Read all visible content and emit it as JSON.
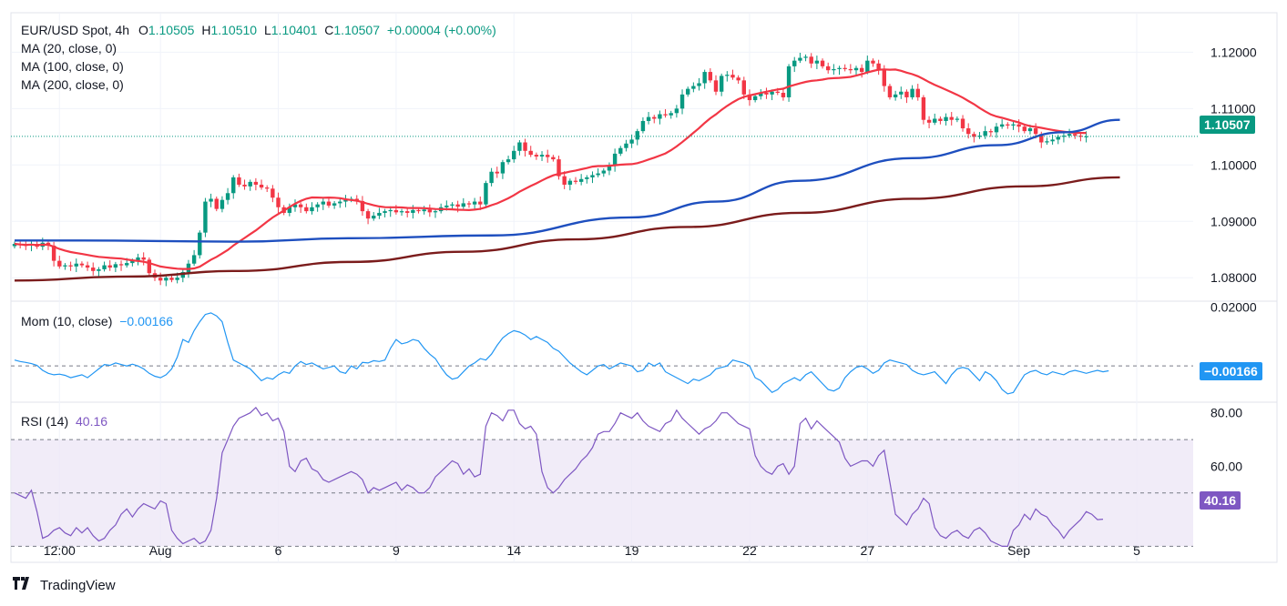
{
  "header": {
    "symbol": "EUR/USD Spot, 4h",
    "open_label": "O",
    "open": "1.10505",
    "high_label": "H",
    "high": "1.10510",
    "low_label": "L",
    "low": "1.10401",
    "close_label": "C",
    "close": "1.10507",
    "change": "+0.00004 (+0.00%)",
    "ma_lines": [
      "MA (20, close, 0)",
      "MA (100, close, 0)",
      "MA (200, close, 0)"
    ]
  },
  "momentum": {
    "label": "Mom (10, close)",
    "value": "−0.00166",
    "badge": "−0.00166"
  },
  "rsi": {
    "label": "RSI (14)",
    "value": "40.16",
    "badge": "40.16"
  },
  "price_badge": "1.10507",
  "brand": {
    "name": "TradingView"
  },
  "colors": {
    "up": "#089981",
    "down": "#f23645",
    "ma20": "#f23645",
    "ma100": "#1e4fbf",
    "ma200": "#7b1c1c",
    "mom": "#2196f3",
    "rsi": "#7e57c2",
    "rsi_band": "#ede7f6"
  },
  "chart_data": [
    {
      "type": "candlestick",
      "title": "EUR/USD Spot, 4h",
      "x_ticks": [
        {
          "label": "12:00",
          "index": 8
        },
        {
          "label": "Aug",
          "index": 26
        },
        {
          "label": "6",
          "index": 47
        },
        {
          "label": "9",
          "index": 68
        },
        {
          "label": "14",
          "index": 89
        },
        {
          "label": "19",
          "index": 110
        },
        {
          "label": "22",
          "index": 131
        },
        {
          "label": "27",
          "index": 152
        },
        {
          "label": "Sep",
          "index": 179
        },
        {
          "label": "5",
          "index": 200
        }
      ],
      "y_ticks": [
        "1.08000",
        "1.09000",
        "1.10000",
        "1.11000",
        "1.12000"
      ],
      "ylim": [
        1.076,
        1.127
      ],
      "last_price": 1.10507,
      "close": [
        1.086,
        1.0858,
        1.0857,
        1.086,
        1.0855,
        1.0862,
        1.0857,
        1.083,
        1.082,
        1.0822,
        1.082,
        1.0825,
        1.0822,
        1.0818,
        1.0812,
        1.0815,
        1.0822,
        1.0818,
        1.0824,
        1.0822,
        1.0826,
        1.083,
        1.0836,
        1.0832,
        1.0808,
        1.08,
        1.0795,
        1.08,
        1.0796,
        1.08,
        1.081,
        1.0825,
        1.084,
        1.088,
        1.0935,
        1.094,
        1.0922,
        1.0938,
        1.095,
        1.0978,
        1.0965,
        1.0962,
        1.097,
        1.0965,
        1.096,
        1.0958,
        1.0942,
        1.0925,
        1.0915,
        1.0925,
        1.093,
        1.0925,
        1.0918,
        1.0925,
        1.093,
        1.0935,
        1.0928,
        1.0932,
        1.0935,
        1.0938,
        1.094,
        1.0936,
        1.0918,
        1.0905,
        1.091,
        1.0915,
        1.0918,
        1.092,
        1.0916,
        1.0918,
        1.0915,
        1.092,
        1.0918,
        1.0921,
        1.0916,
        1.0918,
        1.0925,
        1.0928,
        1.093,
        1.0926,
        1.0932,
        1.093,
        1.0935,
        1.093,
        1.0968,
        1.0988,
        1.0985,
        1.1005,
        1.101,
        1.1025,
        1.104,
        1.1025,
        1.1018,
        1.1015,
        1.1018,
        1.1014,
        1.101,
        1.098,
        1.0965,
        1.0972,
        1.097,
        1.0975,
        1.0978,
        1.0982,
        1.0985,
        1.099,
        1.0998,
        1.102,
        1.103,
        1.1038,
        1.1045,
        1.106,
        1.1078,
        1.1085,
        1.1082,
        1.109,
        1.1088,
        1.1092,
        1.11,
        1.1125,
        1.1135,
        1.114,
        1.1145,
        1.1165,
        1.115,
        1.113,
        1.1158,
        1.116,
        1.1155,
        1.115,
        1.1125,
        1.1115,
        1.1122,
        1.1128,
        1.1125,
        1.113,
        1.1128,
        1.112,
        1.1175,
        1.1185,
        1.119,
        1.1192,
        1.118,
        1.1185,
        1.1175,
        1.1168,
        1.117,
        1.1172,
        1.117,
        1.1168,
        1.1172,
        1.1165,
        1.1185,
        1.118,
        1.1168,
        1.114,
        1.112,
        1.1125,
        1.113,
        1.112,
        1.1135,
        1.112,
        1.108,
        1.1075,
        1.1082,
        1.1078,
        1.1085,
        1.108,
        1.1082,
        1.1065,
        1.1055,
        1.105,
        1.1052,
        1.106,
        1.1058,
        1.1068,
        1.1072,
        1.107,
        1.1072,
        1.1068,
        1.106,
        1.1065,
        1.1055,
        1.104,
        1.1042,
        1.1045,
        1.105,
        1.1052,
        1.1055,
        1.1052,
        1.105,
        1.10507
      ],
      "series": [
        {
          "name": "MA (20, close, 0)",
          "ma_period": 20
        },
        {
          "name": "MA (100, close, 0)",
          "points": [
            [
              0,
              1.0866
            ],
            [
              12,
              1.0866
            ],
            [
              40,
              1.0864
            ],
            [
              60,
              1.087
            ],
            [
              85,
              1.0875
            ],
            [
              110,
              1.0907
            ],
            [
              125,
              1.0935
            ],
            [
              140,
              1.0972
            ],
            [
              160,
              1.1012
            ],
            [
              175,
              1.1035
            ],
            [
              187,
              1.1058
            ],
            [
              197,
              1.108
            ]
          ]
        },
        {
          "name": "MA (200, close, 0)",
          "points": [
            [
              0,
              1.0795
            ],
            [
              20,
              1.0802
            ],
            [
              40,
              1.0812
            ],
            [
              60,
              1.0828
            ],
            [
              80,
              1.0846
            ],
            [
              100,
              1.0868
            ],
            [
              120,
              1.089
            ],
            [
              140,
              1.0915
            ],
            [
              160,
              1.094
            ],
            [
              180,
              1.0962
            ],
            [
              197,
              1.0978
            ]
          ]
        }
      ]
    },
    {
      "type": "line",
      "title": "Mom (10, close)",
      "y_ticks": [
        "0.02000"
      ],
      "ylim": [
        -0.012,
        0.022
      ],
      "zero_line": 0.0,
      "last_value": -0.00166,
      "values": [
        0.002,
        0.0015,
        0.0012,
        0.0008,
        0.0002,
        -0.0015,
        -0.0025,
        -0.003,
        -0.0028,
        -0.0032,
        -0.004,
        -0.0035,
        -0.003,
        -0.004,
        -0.0025,
        -0.001,
        0.0005,
        0.0002,
        0.001,
        0.0005,
        0.0,
        0.0006,
        0.0,
        -0.001,
        -0.0025,
        -0.0035,
        -0.004,
        -0.003,
        -0.001,
        0.003,
        0.009,
        0.008,
        0.012,
        0.015,
        0.0175,
        0.018,
        0.017,
        0.015,
        0.008,
        0.002,
        0.001,
        0.0,
        -0.001,
        -0.003,
        -0.005,
        -0.004,
        -0.0045,
        -0.003,
        -0.002,
        -0.0025,
        0.0,
        0.0015,
        0.0005,
        0.001,
        0.0,
        -0.001,
        -0.0005,
        0.0,
        -0.002,
        -0.0025,
        0.0,
        -0.001,
        0.0012,
        0.001,
        0.0018,
        0.0015,
        0.002,
        0.006,
        0.009,
        0.0075,
        0.008,
        0.009,
        0.0085,
        0.006,
        0.004,
        0.0025,
        -0.0005,
        -0.003,
        -0.0045,
        -0.004,
        -0.002,
        0.0,
        0.001,
        0.0025,
        0.002,
        0.004,
        0.007,
        0.0095,
        0.011,
        0.012,
        0.0115,
        0.0105,
        0.009,
        0.01,
        0.009,
        0.008,
        0.006,
        0.005,
        0.003,
        0.001,
        -0.0005,
        -0.002,
        -0.003,
        -0.0015,
        0.0,
        0.0005,
        -0.001,
        0.0,
        0.001,
        0.0005,
        0.0,
        -0.002,
        -0.0015,
        0.001,
        0.0,
        0.001,
        -0.002,
        -0.003,
        -0.004,
        -0.005,
        -0.006,
        -0.0045,
        -0.005,
        -0.004,
        -0.003,
        -0.001,
        -0.0005,
        0.0,
        0.002,
        0.0015,
        0.001,
        0.0,
        -0.004,
        -0.005,
        -0.007,
        -0.009,
        -0.008,
        -0.006,
        -0.005,
        -0.004,
        -0.005,
        -0.003,
        -0.002,
        -0.004,
        -0.006,
        -0.008,
        -0.0085,
        -0.0075,
        -0.004,
        -0.002,
        -0.0005,
        0.0,
        -0.001,
        -0.0025,
        -0.0015,
        0.001,
        0.002,
        0.0015,
        0.001,
        0.0005,
        -0.0015,
        -0.0025,
        -0.003,
        -0.0025,
        -0.002,
        -0.004,
        -0.006,
        -0.003,
        -0.001,
        -0.0005,
        -0.001,
        -0.003,
        -0.005,
        -0.002,
        -0.003,
        -0.005,
        -0.008,
        -0.0095,
        -0.009,
        -0.006,
        -0.003,
        -0.002,
        -0.0015,
        -0.0025,
        -0.003,
        -0.002,
        -0.0025,
        -0.003,
        -0.002,
        -0.0015,
        -0.002,
        -0.0025,
        -0.002,
        -0.0015,
        -0.002,
        -0.00166
      ],
      "series": [
        {
          "name": "Mom (10, close)"
        }
      ]
    },
    {
      "type": "line",
      "title": "RSI (14)",
      "y_ticks": [
        "60.00",
        "80.00"
      ],
      "ylim": [
        24,
        84
      ],
      "band": [
        30,
        70
      ],
      "midline": 50,
      "last_value": 40.16,
      "values": [
        50,
        49,
        48,
        51,
        43,
        33,
        34,
        36,
        37,
        35,
        34,
        37,
        35,
        37,
        34,
        32,
        33,
        36,
        38,
        42,
        44,
        41,
        44,
        46,
        45,
        44,
        47,
        46,
        36,
        33,
        31,
        32,
        33,
        31,
        32,
        36,
        48,
        65,
        70,
        75,
        78,
        79,
        80,
        82,
        79,
        80,
        77,
        78,
        73,
        60,
        58,
        62,
        63,
        59,
        58,
        55,
        54,
        55,
        56,
        57,
        58,
        57,
        55,
        50,
        52,
        51,
        52,
        53,
        54,
        51,
        53,
        52,
        50,
        50,
        52,
        56,
        58,
        60,
        62,
        61,
        57,
        59,
        56,
        57,
        75,
        80,
        79,
        77,
        81,
        81,
        76,
        74,
        75,
        72,
        58,
        52,
        50,
        52,
        55,
        57,
        59,
        62,
        64,
        67,
        72,
        73,
        73,
        76,
        80,
        79,
        78,
        80,
        77,
        75,
        74,
        73,
        76,
        77,
        81,
        78,
        76,
        74,
        72,
        74,
        75,
        77,
        80,
        80,
        78,
        76,
        75,
        74,
        64,
        60,
        58,
        57,
        60,
        61,
        57,
        60,
        76,
        78,
        74,
        77,
        75,
        73,
        71,
        69,
        63,
        60,
        61,
        62,
        62,
        60,
        64,
        66,
        54,
        42,
        40,
        38,
        42,
        44,
        48,
        46,
        37,
        34,
        33,
        35,
        36,
        34,
        33,
        36,
        37,
        35,
        32,
        31,
        30,
        30,
        36,
        38,
        42,
        40,
        44,
        42,
        41,
        38,
        36,
        33,
        36,
        38,
        40,
        43,
        42,
        40,
        40.16
      ],
      "series": [
        {
          "name": "RSI (14)"
        }
      ]
    }
  ]
}
